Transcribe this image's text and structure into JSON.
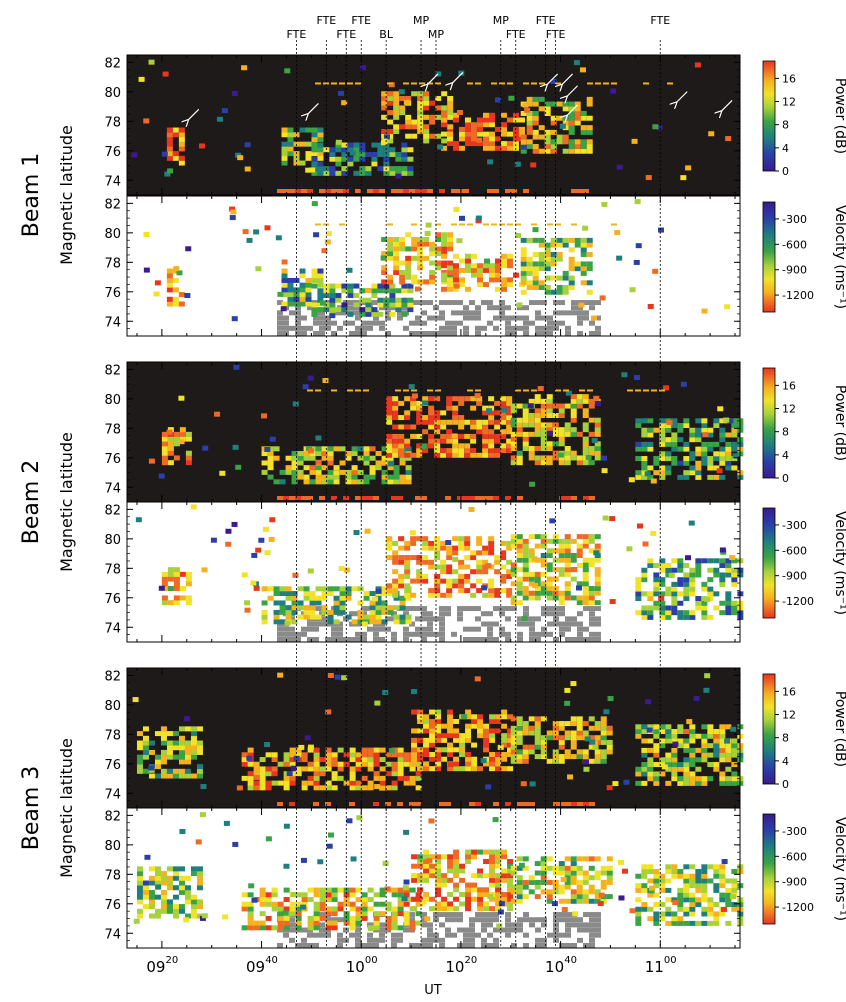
{
  "figure": {
    "event_labels": [
      {
        "label": "FTE",
        "time": "09:47",
        "row": 2
      },
      {
        "label": "FTE",
        "time": "09:53",
        "row": 1
      },
      {
        "label": "FTE",
        "time": "09:57",
        "row": 2
      },
      {
        "label": "FTE",
        "time": "10:00",
        "row": 1
      },
      {
        "label": "BL",
        "time": "10:05",
        "row": 2
      },
      {
        "label": "MP",
        "time": "10:12",
        "row": 1
      },
      {
        "label": "MP",
        "time": "10:15",
        "row": 2
      },
      {
        "label": "MP",
        "time": "10:28",
        "row": 1
      },
      {
        "label": "FTE",
        "time": "10:31",
        "row": 2
      },
      {
        "label": "FTE",
        "time": "10:37",
        "row": 1
      },
      {
        "label": "FTE",
        "time": "10:39",
        "row": 2
      },
      {
        "label": "FTE",
        "time": "11:00",
        "row": 1
      }
    ],
    "colors": {
      "background": "#1f1a1a",
      "ground_scatter": "#8a8a8a",
      "scale": [
        "#3b1b8f",
        "#2a3fa8",
        "#1f7f7f",
        "#3aa346",
        "#a6d13a",
        "#f2e22a",
        "#f6b11e",
        "#ef6a25",
        "#e8361f"
      ]
    },
    "panels": [
      {
        "beam_label": "Beam 1",
        "ylabel": "Magnetic latitude",
        "cbar_label": "Power (dB)",
        "type": "power"
      },
      {
        "beam_label": "Beam 1",
        "ylabel": "Magnetic latitude",
        "cbar_label": "Velocity (ms⁻¹)",
        "type": "velocity"
      },
      {
        "beam_label": "Beam 2",
        "ylabel": "Magnetic latitude",
        "cbar_label": "Power (dB)",
        "type": "power"
      },
      {
        "beam_label": "Beam 2",
        "ylabel": "Magnetic latitude",
        "cbar_label": "Velocity (ms⁻¹)",
        "type": "velocity"
      },
      {
        "beam_label": "Beam 3",
        "ylabel": "Magnetic latitude",
        "cbar_label": "Power (dB)",
        "type": "power"
      },
      {
        "beam_label": "Beam 3",
        "ylabel": "Magnetic latitude",
        "cbar_label": "Velocity (ms⁻¹)",
        "type": "velocity"
      }
    ],
    "x_ticks": [
      {
        "hour": "09",
        "min": "20"
      },
      {
        "hour": "09",
        "min": "40"
      },
      {
        "hour": "10",
        "min": "00"
      },
      {
        "hour": "10",
        "min": "20"
      },
      {
        "hour": "10",
        "min": "40"
      },
      {
        "hour": "11",
        "min": "00"
      }
    ],
    "xlabel": "UT"
  },
  "chart_data": {
    "type": "heatmap",
    "x_range": [
      "09:13",
      "11:16"
    ],
    "ylim": [
      73,
      82.5
    ],
    "y_ticks": [
      74,
      76,
      78,
      80,
      82
    ],
    "power_ticks": [
      0,
      4,
      8,
      12,
      16
    ],
    "power_range": [
      0,
      19
    ],
    "velocity_ticks": [
      -300,
      -600,
      -900,
      -1200
    ],
    "velocity_range": [
      -1400,
      -100
    ],
    "event_times": [
      "09:47",
      "09:53",
      "09:57",
      "10:00",
      "10:05",
      "10:12",
      "10:15",
      "10:28",
      "10:31",
      "10:37",
      "10:39",
      "11:00"
    ],
    "arrows_beam1": [
      {
        "time": "09:25",
        "lat": 78.0
      },
      {
        "time": "09:49",
        "lat": 78.4
      },
      {
        "time": "10:13",
        "lat": 80.4
      },
      {
        "time": "10:18",
        "lat": 80.5
      },
      {
        "time": "10:37",
        "lat": 80.4
      },
      {
        "time": "10:40",
        "lat": 80.4
      },
      {
        "time": "10:41",
        "lat": 79.6
      },
      {
        "time": "10:41",
        "lat": 78.3
      },
      {
        "time": "11:03",
        "lat": 79.2
      },
      {
        "time": "11:12",
        "lat": 78.6
      }
    ],
    "scatter_regions": {
      "beam1": [
        {
          "t0": "09:21",
          "t1": "09:24",
          "lat0": 75.0,
          "lat1": 77.5,
          "level": 0.85
        },
        {
          "t0": "09:44",
          "t1": "09:52",
          "lat0": 75.0,
          "lat1": 77.5,
          "level": 0.5
        },
        {
          "t0": "09:50",
          "t1": "10:10",
          "lat0": 74.3,
          "lat1": 76.5,
          "level": 0.35
        },
        {
          "t0": "10:04",
          "t1": "10:18",
          "lat0": 76.5,
          "lat1": 80.0,
          "level": 0.75
        },
        {
          "t0": "10:16",
          "t1": "10:32",
          "lat0": 76.0,
          "lat1": 78.5,
          "level": 0.85
        },
        {
          "t0": "10:32",
          "t1": "10:46",
          "lat0": 75.8,
          "lat1": 79.5,
          "level": 0.6
        }
      ],
      "beam2": [
        {
          "t0": "09:20",
          "t1": "09:25",
          "lat0": 75.5,
          "lat1": 78.0,
          "level": 0.8
        },
        {
          "t0": "09:40",
          "t1": "10:10",
          "lat0": 74.2,
          "lat1": 76.5,
          "level": 0.55
        },
        {
          "t0": "10:05",
          "t1": "10:30",
          "lat0": 76.0,
          "lat1": 80.0,
          "level": 0.85
        },
        {
          "t0": "10:30",
          "t1": "10:47",
          "lat0": 75.5,
          "lat1": 80.0,
          "level": 0.65
        },
        {
          "t0": "10:55",
          "t1": "11:16",
          "lat0": 74.5,
          "lat1": 78.5,
          "level": 0.45
        }
      ],
      "beam3": [
        {
          "t0": "09:15",
          "t1": "09:28",
          "lat0": 75.0,
          "lat1": 78.5,
          "level": 0.5
        },
        {
          "t0": "09:36",
          "t1": "10:12",
          "lat0": 74.2,
          "lat1": 77.0,
          "level": 0.75
        },
        {
          "t0": "10:10",
          "t1": "10:30",
          "lat0": 75.5,
          "lat1": 79.5,
          "level": 0.8
        },
        {
          "t0": "10:30",
          "t1": "10:50",
          "lat0": 76.0,
          "lat1": 79.0,
          "level": 0.65
        },
        {
          "t0": "10:55",
          "t1": "11:16",
          "lat0": 74.5,
          "lat1": 78.5,
          "level": 0.55
        }
      ]
    }
  }
}
